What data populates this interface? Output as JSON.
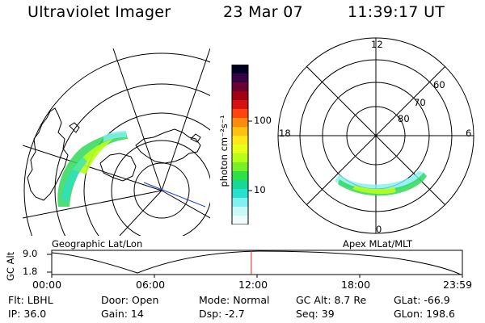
{
  "header": {
    "instrument": "Ultraviolet Imager",
    "date": "23 Mar 07",
    "time": "11:39:17 UT"
  },
  "colorbar": {
    "unit_label": "photon cm⁻²s⁻¹",
    "ticks": [
      "100",
      "10"
    ],
    "colors": [
      "#000022",
      "#3a0046",
      "#6a0030",
      "#a00010",
      "#d41010",
      "#ff4410",
      "#ff8a10",
      "#ffc010",
      "#ffe818",
      "#e8ff18",
      "#b8ff18",
      "#78f028",
      "#30e048",
      "#18d898",
      "#28e0d0",
      "#80f0f0",
      "#c8f8f8",
      "#eefcfc"
    ]
  },
  "geo_panel": {
    "title": "Geographic Lat/Lon"
  },
  "mag_panel": {
    "title": "Apex MLat/MLT",
    "mlt_labels": {
      "top": "12",
      "left": "18",
      "right": "6",
      "bottom": "0"
    },
    "lat_labels": [
      "60",
      "70",
      "80"
    ]
  },
  "timeline": {
    "ylabel": "GC Alt",
    "y_ticks": [
      "9.0",
      "1.8"
    ],
    "x_ticks": [
      "00:00",
      "06:00",
      "12:00",
      "18:00",
      "23:59"
    ],
    "cursor_fraction": 0.486
  },
  "info": {
    "flt": "Flt: LBHL",
    "ip": "IP: 36.0",
    "door": "Door: Open",
    "gain": "Gain: 14",
    "mode": "Mode: Normal",
    "dsp": "Dsp:    -2.7",
    "gcalt": "GC Alt: 8.7 Re",
    "seq": "Seq: 39",
    "glat": "GLat: -66.9",
    "glon": "GLon: 198.6"
  }
}
